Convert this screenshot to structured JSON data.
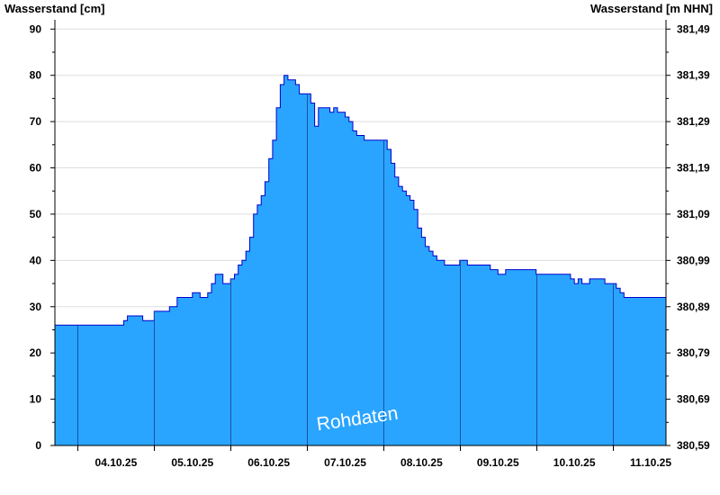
{
  "chart_data": {
    "type": "area",
    "title": "",
    "ylabel_left": "Wasserstand [cm]",
    "ylabel_right": "Wasserstand [m NHN]",
    "ylim_left": [
      0,
      92
    ],
    "yticks_left": [
      0,
      10,
      20,
      30,
      40,
      50,
      60,
      70,
      80,
      90
    ],
    "yticks_right": [
      "380,59",
      "380,69",
      "380,79",
      "380,89",
      "380,99",
      "381,09",
      "381,19",
      "381,29",
      "381,39",
      "381,49"
    ],
    "x_range_days": [
      3.7,
      11.7
    ],
    "day_boundaries": [
      4,
      5,
      6,
      7,
      8,
      9,
      10,
      11
    ],
    "xticks": [
      {
        "day": 4.5,
        "label": "04.10.25"
      },
      {
        "day": 5.5,
        "label": "05.10.25"
      },
      {
        "day": 6.5,
        "label": "06.10.25"
      },
      {
        "day": 7.5,
        "label": "07.10.25"
      },
      {
        "day": 8.5,
        "label": "08.10.25"
      },
      {
        "day": 9.5,
        "label": "09.10.25"
      },
      {
        "day": 10.5,
        "label": "10.10.25"
      },
      {
        "day": 11.5,
        "label": "11.10.25"
      }
    ],
    "grid": "horizontal",
    "fill_color": "#2aa5ff",
    "line_color": "#0000cc",
    "annotation": "Rohdaten",
    "series": [
      {
        "x": [
          3.7,
          4.5,
          4.5,
          4.6,
          4.6,
          4.65,
          4.65,
          4.85,
          4.85,
          5.0,
          5.0,
          5.2,
          5.2,
          5.3,
          5.3,
          5.5,
          5.55,
          5.6,
          5.7,
          5.75,
          5.8,
          5.85,
          5.9,
          6.0,
          6.05,
          6.1,
          6.15,
          6.2,
          6.25,
          6.3,
          6.35,
          6.4,
          6.45,
          6.5,
          6.55,
          6.6,
          6.65,
          6.7,
          6.75,
          6.8,
          6.85,
          6.9,
          6.95,
          7.0,
          7.05,
          7.1,
          7.15,
          7.2,
          7.25,
          7.3,
          7.35,
          7.4,
          7.45,
          7.5,
          7.55,
          7.6,
          7.65,
          7.7,
          7.75,
          7.8,
          7.9,
          8.0,
          8.05,
          8.1,
          8.15,
          8.2,
          8.25,
          8.3,
          8.35,
          8.4,
          8.45,
          8.5,
          8.55,
          8.6,
          8.65,
          8.7,
          8.75,
          8.8,
          8.9,
          9.0,
          9.1,
          9.2,
          9.3,
          9.4,
          9.5,
          9.6,
          9.7,
          9.8,
          9.9,
          10.0,
          10.2,
          10.3,
          10.4,
          10.45,
          10.5,
          10.55,
          10.6,
          10.7,
          10.8,
          10.9,
          11.0,
          11.05,
          11.1,
          11.15,
          11.2,
          11.7
        ],
        "y": [
          26,
          26,
          26,
          27,
          27,
          28,
          28,
          27,
          27,
          28,
          29,
          29,
          30,
          31,
          32,
          33,
          33,
          32,
          33,
          35,
          37,
          37,
          35,
          36,
          37,
          39,
          40,
          42,
          45,
          50,
          52,
          54,
          57,
          62,
          66,
          73,
          78,
          80,
          79,
          79,
          78,
          76,
          76,
          76,
          74,
          69,
          73,
          73,
          73,
          72,
          73,
          72,
          72,
          71,
          70,
          68,
          67,
          67,
          66,
          66,
          66,
          66,
          64,
          61,
          58,
          56,
          55,
          54,
          53,
          51,
          47,
          45,
          43,
          42,
          41,
          40,
          40,
          39,
          39,
          40,
          39,
          39,
          39,
          38,
          37,
          38,
          38,
          38,
          38,
          37,
          37,
          37,
          37,
          36,
          35,
          36,
          35,
          36,
          36,
          35,
          35,
          34,
          33,
          32,
          32,
          32
        ]
      }
    ]
  }
}
